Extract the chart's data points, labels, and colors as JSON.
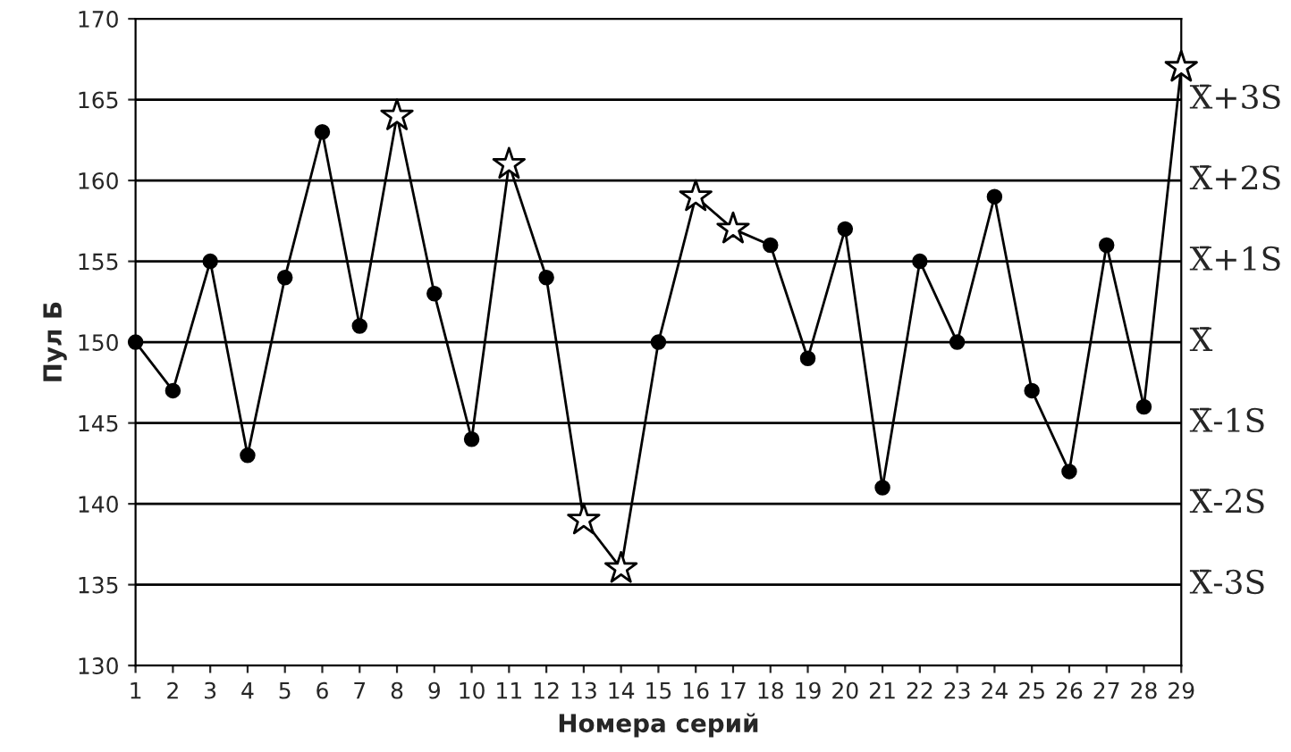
{
  "chart_data": {
    "type": "line",
    "xlabel": "Номера серий",
    "ylabel": "Пул Б",
    "categories": [
      "1",
      "2",
      "3",
      "4",
      "5",
      "6",
      "7",
      "8",
      "9",
      "10",
      "11",
      "12",
      "13",
      "14",
      "15",
      "16",
      "17",
      "18",
      "19",
      "20",
      "21",
      "22",
      "23",
      "24",
      "25",
      "26",
      "27",
      "28",
      "29"
    ],
    "ylim": [
      130,
      170
    ],
    "yticks": [
      130,
      135,
      140,
      145,
      150,
      155,
      160,
      165,
      170
    ],
    "grid": false,
    "series": [
      {
        "color": "#000000",
        "marker": "none",
        "values": [
          150,
          147,
          155,
          143,
          154,
          163,
          151,
          164,
          153,
          144,
          161,
          154,
          139,
          136,
          150,
          159,
          157,
          156,
          149,
          157,
          141,
          155,
          150,
          159,
          147,
          142,
          156,
          146,
          167
        ]
      },
      {
        "type": "scatter",
        "color": "#000000",
        "marker": "circle",
        "x": [
          "1",
          "2",
          "3",
          "4",
          "5",
          "6",
          "7",
          "9",
          "10",
          "12",
          "15",
          "18",
          "19",
          "20",
          "21",
          "22",
          "23",
          "24",
          "25",
          "26",
          "27",
          "28"
        ],
        "values": [
          150,
          147,
          155,
          143,
          154,
          163,
          151,
          153,
          144,
          154,
          150,
          156,
          149,
          157,
          141,
          155,
          150,
          159,
          147,
          142,
          156,
          146
        ]
      },
      {
        "type": "scatter",
        "color": "#000000",
        "marker": "star",
        "x": [
          "8",
          "11",
          "13",
          "14",
          "16",
          "17",
          "29"
        ],
        "values": [
          164,
          161,
          139,
          136,
          159,
          157,
          167
        ]
      }
    ],
    "ref_lines": [
      {
        "axis": "y",
        "value": 165,
        "label": "X̄+3S"
      },
      {
        "axis": "y",
        "value": 160,
        "label": "X̄+2S"
      },
      {
        "axis": "y",
        "value": 155,
        "label": "X̄+1S"
      },
      {
        "axis": "y",
        "value": 150,
        "label": "X̄"
      },
      {
        "axis": "y",
        "value": 145,
        "label": "X̄-1S"
      },
      {
        "axis": "y",
        "value": 140,
        "label": "X̄-2S"
      },
      {
        "axis": "y",
        "value": 135,
        "label": "X̄-3S"
      }
    ]
  }
}
